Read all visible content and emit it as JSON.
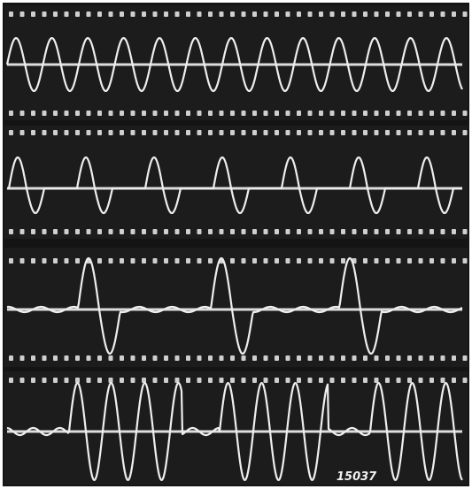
{
  "label": "15037"
}
